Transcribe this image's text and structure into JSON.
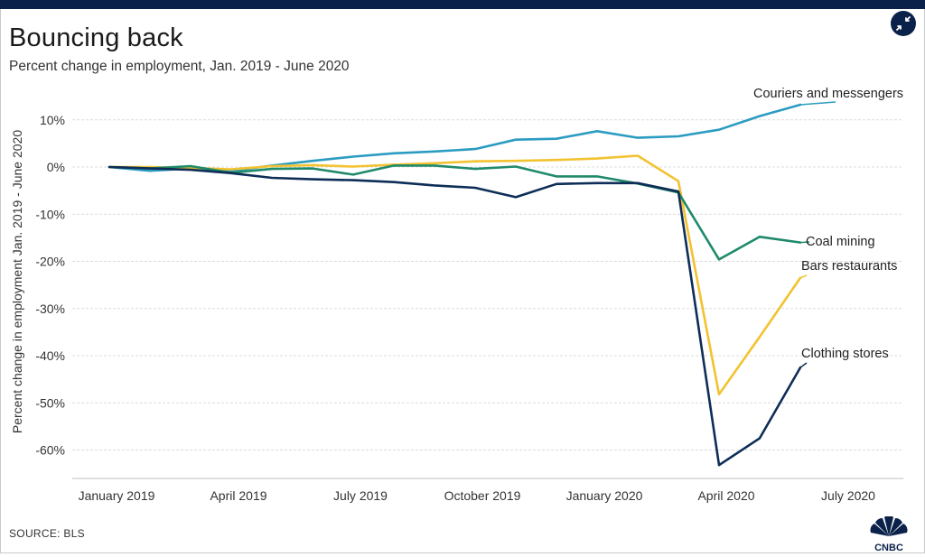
{
  "header": {
    "title": "Bouncing back",
    "subtitle": "Percent change in employment, Jan. 2019 - June 2020"
  },
  "footer": {
    "source": "SOURCE: BLS",
    "logo_text": "CNBC"
  },
  "controls": {
    "expand_icon": "collapse-arrows-icon"
  },
  "colors": {
    "couriers": "#2b9cc1",
    "coal": "#1f8a6b",
    "bars": "#f2c230",
    "clothing": "#0e2d57",
    "grid": "#dcdcdc",
    "brand_bar": "#0a2149"
  },
  "chart_data": {
    "type": "line",
    "title": "Bouncing back",
    "subtitle": "Percent change in employment, Jan. 2019 - June 2020",
    "xlabel": "",
    "ylabel": "Percent change in employment Jan. 2019 - June 2020",
    "x_ticks": [
      "January 2019",
      "April 2019",
      "July 2019",
      "October 2019",
      "January 2020",
      "April 2020",
      "July 2020"
    ],
    "y_ticks": [
      "10%",
      "0%",
      "-10%",
      "-20%",
      "-30%",
      "-40%",
      "-50%",
      "-60%"
    ],
    "y_tick_values": [
      10,
      0,
      -10,
      -20,
      -30,
      -40,
      -50,
      -60
    ],
    "ylim": [
      -65,
      15
    ],
    "x": [
      "2019-01",
      "2019-02",
      "2019-03",
      "2019-04",
      "2019-05",
      "2019-06",
      "2019-07",
      "2019-08",
      "2019-09",
      "2019-10",
      "2019-11",
      "2019-12",
      "2020-01",
      "2020-02",
      "2020-03",
      "2020-04",
      "2020-05",
      "2020-06"
    ],
    "grid": true,
    "series": [
      {
        "name": "Couriers and messengers",
        "color": "#2b9cc1",
        "values": [
          0,
          -0.8,
          -0.3,
          -0.8,
          0.3,
          1.3,
          2.2,
          2.9,
          3.3,
          3.8,
          5.8,
          6.0,
          7.6,
          6.2,
          6.5,
          7.9,
          10.8,
          13.2
        ]
      },
      {
        "name": "Coal mining",
        "color": "#1f8a6b",
        "values": [
          0,
          -0.3,
          0.2,
          -1.2,
          -0.4,
          -0.3,
          -1.6,
          0.3,
          0.3,
          -0.4,
          0.1,
          -2.0,
          -2.0,
          -3.5,
          -5.4,
          -19.6,
          -14.8,
          -16.0
        ]
      },
      {
        "name": "Bars restaurants",
        "color": "#f2c230",
        "values": [
          0,
          0,
          -0.2,
          -0.5,
          0.2,
          0.4,
          0.1,
          0.5,
          0.8,
          1.2,
          1.3,
          1.5,
          1.8,
          2.4,
          -3.0,
          -48.2,
          -36.0,
          -23.5
        ]
      },
      {
        "name": "Clothing stores",
        "color": "#0e2d57",
        "values": [
          0,
          -0.3,
          -0.6,
          -1.3,
          -2.3,
          -2.6,
          -2.8,
          -3.2,
          -3.9,
          -4.4,
          -6.4,
          -3.6,
          -3.4,
          -3.4,
          -5.2,
          -63.2,
          -57.5,
          -42.5
        ]
      }
    ]
  }
}
